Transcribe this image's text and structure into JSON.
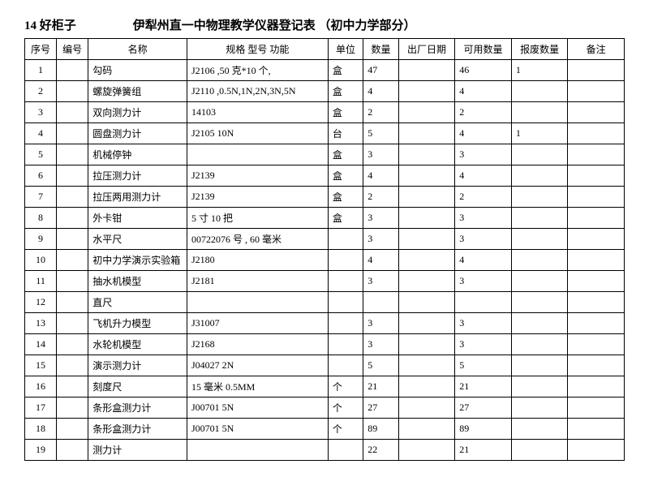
{
  "header": {
    "cabinet": "14 好柜子",
    "title": "伊犁州直一中物理教学仪器登记表  （初中力学部分）"
  },
  "columns": [
    "序号",
    "编号",
    "名称",
    "规格  型号  功能",
    "单位",
    "数量",
    "出厂日期",
    "可用数量",
    "报废数量",
    "备注"
  ],
  "rows": [
    {
      "seq": "1",
      "code": "",
      "name": "勾码",
      "spec": "J2106  ,50 克*10 个,",
      "unit": "盒",
      "qty": "47",
      "date": "",
      "avail": "46",
      "scrap": "1",
      "remark": ""
    },
    {
      "seq": "2",
      "code": "",
      "name": "螺旋弹簧组",
      "spec": "J2110  ,0.5N,1N,2N,3N,5N",
      "unit": "盒",
      "qty": "4",
      "date": "",
      "avail": "4",
      "scrap": "",
      "remark": ""
    },
    {
      "seq": "3",
      "code": "",
      "name": "双向测力计",
      "spec": "14103",
      "unit": "盒",
      "qty": "2",
      "date": "",
      "avail": "2",
      "scrap": "",
      "remark": ""
    },
    {
      "seq": "4",
      "code": "",
      "name": "圆盘测力计",
      "spec": "J2105    10N",
      "unit": "台",
      "qty": "5",
      "date": "",
      "avail": "4",
      "scrap": "1",
      "remark": ""
    },
    {
      "seq": "5",
      "code": "",
      "name": "机械停钟",
      "spec": "",
      "unit": "盒",
      "qty": "3",
      "date": "",
      "avail": "3",
      "scrap": "",
      "remark": ""
    },
    {
      "seq": "6",
      "code": "",
      "name": "拉压测力计",
      "spec": "J2139",
      "unit": "盒",
      "qty": "4",
      "date": "",
      "avail": "4",
      "scrap": "",
      "remark": ""
    },
    {
      "seq": "7",
      "code": "",
      "name": "拉压两用测力计",
      "spec": "J2139",
      "unit": "盒",
      "qty": "2",
      "date": "",
      "avail": "2",
      "scrap": "",
      "remark": ""
    },
    {
      "seq": "8",
      "code": "",
      "name": "外卡钳",
      "spec": "5 寸     10 把",
      "unit": "盒",
      "qty": "3",
      "date": "",
      "avail": "3",
      "scrap": "",
      "remark": ""
    },
    {
      "seq": "9",
      "code": "",
      "name": "水平尺",
      "spec": "00722076 号   , 60 毫米",
      "unit": "",
      "qty": "3",
      "date": "",
      "avail": "3",
      "scrap": "",
      "remark": ""
    },
    {
      "seq": "10",
      "code": "",
      "name": "初中力学演示实验箱",
      "spec": "J2180",
      "unit": "",
      "qty": "4",
      "date": "",
      "avail": "4",
      "scrap": "",
      "remark": ""
    },
    {
      "seq": "11",
      "code": "",
      "name": "抽水机模型",
      "spec": "J2181",
      "unit": "",
      "qty": "3",
      "date": "",
      "avail": "3",
      "scrap": "",
      "remark": ""
    },
    {
      "seq": "12",
      "code": "",
      "name": "直尺",
      "spec": "",
      "unit": "",
      "qty": "",
      "date": "",
      "avail": "",
      "scrap": "",
      "remark": ""
    },
    {
      "seq": "13",
      "code": "",
      "name": "飞机升力模型",
      "spec": "J31007",
      "unit": "",
      "qty": "3",
      "date": "",
      "avail": "3",
      "scrap": "",
      "remark": ""
    },
    {
      "seq": "14",
      "code": "",
      "name": "水轮机模型",
      "spec": "J2168",
      "unit": "",
      "qty": "3",
      "date": "",
      "avail": "3",
      "scrap": "",
      "remark": ""
    },
    {
      "seq": "15",
      "code": "",
      "name": "演示测力计",
      "spec": "J04027    2N",
      "unit": "",
      "qty": "5",
      "date": "",
      "avail": "5",
      "scrap": "",
      "remark": ""
    },
    {
      "seq": "16",
      "code": "",
      "name": "刻度尺",
      "spec": "15 毫米    0.5MM",
      "unit": "个",
      "qty": "21",
      "date": "",
      "avail": "21",
      "scrap": "",
      "remark": ""
    },
    {
      "seq": "17",
      "code": "",
      "name": "条形盒测力计",
      "spec": "J00701    5N",
      "unit": "个",
      "qty": "27",
      "date": "",
      "avail": "27",
      "scrap": "",
      "remark": ""
    },
    {
      "seq": "18",
      "code": "",
      "name": "条形盒测力计",
      "spec": "J00701    5N",
      "unit": "个",
      "qty": "89",
      "date": "",
      "avail": "89",
      "scrap": "",
      "remark": ""
    },
    {
      "seq": "19",
      "code": "",
      "name": "测力计",
      "spec": "",
      "unit": "",
      "qty": "22",
      "date": "",
      "avail": "21",
      "scrap": "",
      "remark": ""
    }
  ]
}
